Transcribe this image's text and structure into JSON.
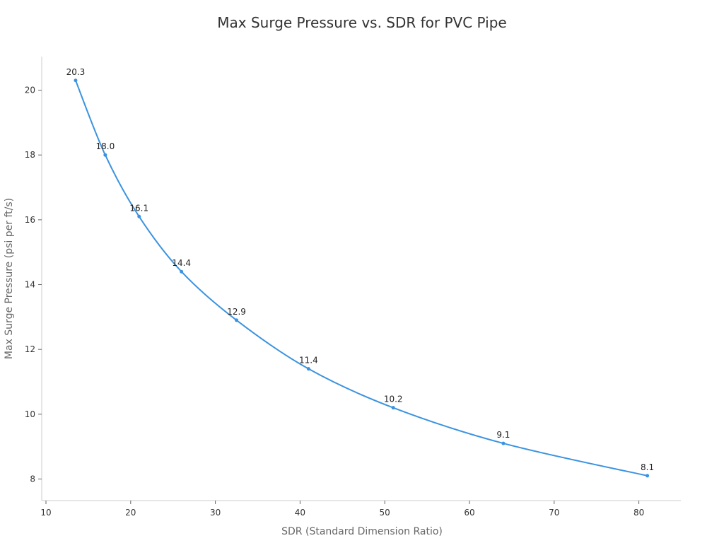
{
  "chart_data": {
    "type": "line",
    "title": "Max Surge Pressure vs. SDR for PVC Pipe",
    "xlabel": "SDR (Standard Dimension Ratio)",
    "ylabel": "Max Surge Pressure (psi per ft/s)",
    "xlim": [
      10,
      85
    ],
    "ylim": [
      7.3,
      21
    ],
    "xticks": [
      10,
      20,
      30,
      40,
      50,
      60,
      70,
      80
    ],
    "yticks": [
      8,
      10,
      12,
      14,
      16,
      18,
      20
    ],
    "grid": false,
    "series": [
      {
        "color": "#3b93e0",
        "x": [
          13.5,
          17,
          21,
          26,
          32.5,
          41,
          51,
          64,
          81
        ],
        "y": [
          20.3,
          18.0,
          16.1,
          14.4,
          12.9,
          11.4,
          10.2,
          9.1,
          8.1
        ],
        "labels": [
          "20.3",
          "18.0",
          "16.1",
          "14.4",
          "12.9",
          "11.4",
          "10.2",
          "9.1",
          "8.1"
        ]
      }
    ]
  }
}
